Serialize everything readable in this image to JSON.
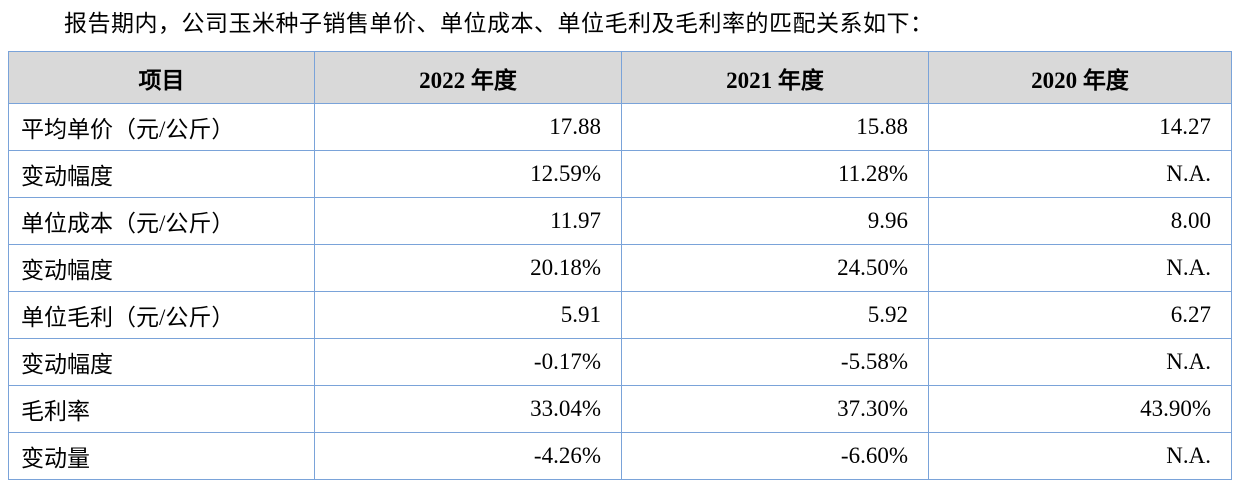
{
  "intro": "报告期内，公司玉米种子销售单价、单位成本、单位毛利及毛利率的匹配关系如下：",
  "table": {
    "headers": [
      "项目",
      "2022 年度",
      "2021 年度",
      "2020 年度"
    ],
    "rows": [
      {
        "label": "平均单价（元/公斤）",
        "values": [
          "17.88",
          "15.88",
          "14.27"
        ]
      },
      {
        "label": "变动幅度",
        "values": [
          "12.59%",
          "11.28%",
          "N.A."
        ]
      },
      {
        "label": "单位成本（元/公斤）",
        "values": [
          "11.97",
          "9.96",
          "8.00"
        ]
      },
      {
        "label": "变动幅度",
        "values": [
          "20.18%",
          "24.50%",
          "N.A."
        ]
      },
      {
        "label": "单位毛利（元/公斤）",
        "values": [
          "5.91",
          "5.92",
          "6.27"
        ]
      },
      {
        "label": "变动幅度",
        "values": [
          "-0.17%",
          "-5.58%",
          "N.A."
        ]
      },
      {
        "label": "毛利率",
        "values": [
          "33.04%",
          "37.30%",
          "43.90%"
        ]
      },
      {
        "label": "变动量",
        "values": [
          "-4.26%",
          "-6.60%",
          "N.A."
        ]
      }
    ]
  },
  "colors": {
    "border": "#7aa3d9",
    "header_bg": "#d9d9d9",
    "text": "#000000"
  }
}
